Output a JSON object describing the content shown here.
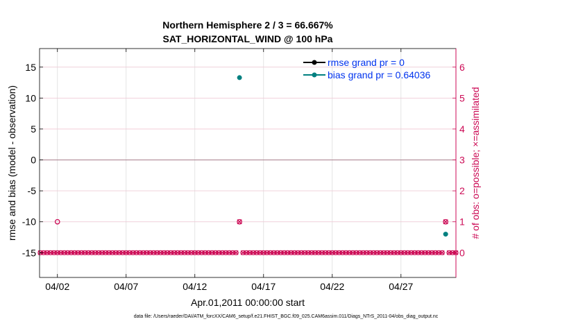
{
  "chart_data": {
    "type": "scatter",
    "title_lines": [
      "Northern Hemisphere 2 / 3 = 66.667%",
      "SAT_HORIZONTAL_WIND @ 100 hPa"
    ],
    "xlabel": "Apr.01,2011 00:00:00 start",
    "ylabel_left": "rmse and bias (model - observation)",
    "ylabel_right": "# of obs: o=possible; ×=assimilated",
    "x_tick_labels": [
      "04/02",
      "04/07",
      "04/12",
      "04/17",
      "04/22",
      "04/27"
    ],
    "x_tick_days": [
      2,
      7,
      12,
      17,
      22,
      27
    ],
    "xlim_days": [
      0.7,
      31.0
    ],
    "ylim_left": [
      -19,
      18
    ],
    "y_ticks_left": [
      -15,
      -10,
      -5,
      0,
      5,
      10,
      15
    ],
    "ylim_right": [
      -0.8,
      6.6
    ],
    "y_ticks_right": [
      0,
      1,
      2,
      3,
      4,
      5,
      6
    ],
    "grid": true,
    "legend_position": "top-right",
    "zero_line_left": 0,
    "series": [
      {
        "name": "rmse grand pr = 0",
        "axis": "left",
        "color": "#000000",
        "points": []
      },
      {
        "name": "bias grand pr = 0.64036",
        "axis": "left",
        "color": "#008080",
        "points": [
          [
            15.25,
            13.3
          ],
          [
            30.25,
            -12.0
          ]
        ]
      },
      {
        "axis": "right",
        "color": "#cc0a55",
        "marker": "circle",
        "points": [
          [
            2.0,
            1
          ],
          [
            15.25,
            1
          ],
          [
            30.25,
            1
          ]
        ]
      },
      {
        "axis": "right",
        "color": "#cc0a55",
        "marker": "cross",
        "points": [
          [
            15.25,
            1
          ],
          [
            30.25,
            1
          ]
        ]
      }
    ],
    "zero_count_days": {
      "start": 0.75,
      "end": 31.0,
      "step": 0.25,
      "missing": [
        15.25,
        30.25
      ]
    },
    "colors": {
      "left_axis": "#000000",
      "right_axis": "#cc0a55",
      "legend_text": "#0033ee",
      "grid": "#dddddd"
    }
  },
  "footer": {
    "data_file": "data file: /Users/raeder/DAI/ATM_forcXX/CAM6_setup/f.e21.FHIST_BGC.f09_025.CAM6assim.011/Diags_NTrS_2011-04/obs_diag_output.nc"
  }
}
